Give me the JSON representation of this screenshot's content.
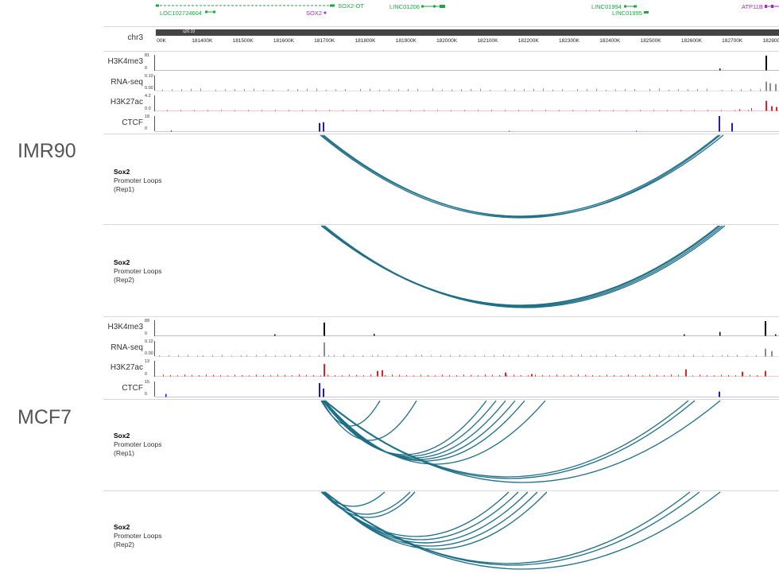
{
  "samples": {
    "top": "IMR90",
    "bottom": "MCF7"
  },
  "genes": {
    "sox2_ot": "SOX2-OT",
    "loc": "LOC102724604",
    "sox2": "SOX2",
    "linc01206": "LINC01206",
    "linc01994": "LINC01994",
    "linc01995": "LINC01995",
    "atp11b": "ATP11B"
  },
  "ruler": {
    "chrom": "chr3",
    "band": "q26.33",
    "ticks": [
      "00K",
      "181400K",
      "181500K",
      "181600K",
      "181700K",
      "181800K",
      "181900K",
      "182000K",
      "182100K",
      "182200K",
      "182300K",
      "182400K",
      "182500K",
      "182600K",
      "182700K",
      "182800K"
    ]
  },
  "imr90_tracks": [
    {
      "name": "H3K4me3",
      "max": "81",
      "min": "0",
      "color": "#000000"
    },
    {
      "name": "RNA-seq",
      "max": "0.10",
      "min": "0.00",
      "color": "#8c8c8c"
    },
    {
      "name": "H3K27ac",
      "max": "4.2",
      "min": "0.0",
      "color": "#d62728"
    },
    {
      "name": "CTCF",
      "max": "18",
      "min": "0",
      "color": "#1a1ad6"
    }
  ],
  "mcf7_tracks": [
    {
      "name": "H3K4me3",
      "max": "89",
      "min": "0",
      "color": "#000000"
    },
    {
      "name": "RNA-seq",
      "max": "0.12",
      "min": "0.00",
      "color": "#8c8c8c"
    },
    {
      "name": "H3K27ac",
      "max": "13",
      "min": "0",
      "color": "#d62728"
    },
    {
      "name": "CTCF",
      "max": "15",
      "min": "0",
      "color": "#1a1ad6"
    }
  ],
  "loop_panels": [
    {
      "title": "Sox2",
      "line1": "Promoter Loops",
      "line2": "(Rep1)"
    },
    {
      "title": "Sox2",
      "line1": "Promoter Loops",
      "line2": "(Rep2)"
    },
    {
      "title": "Sox2",
      "line1": "Promoter Loops",
      "line2": "(Rep1)"
    },
    {
      "title": "Sox2",
      "line1": "Promoter Loops",
      "line2": "(Rep2)"
    }
  ],
  "loop_color": "#1f6f86"
}
